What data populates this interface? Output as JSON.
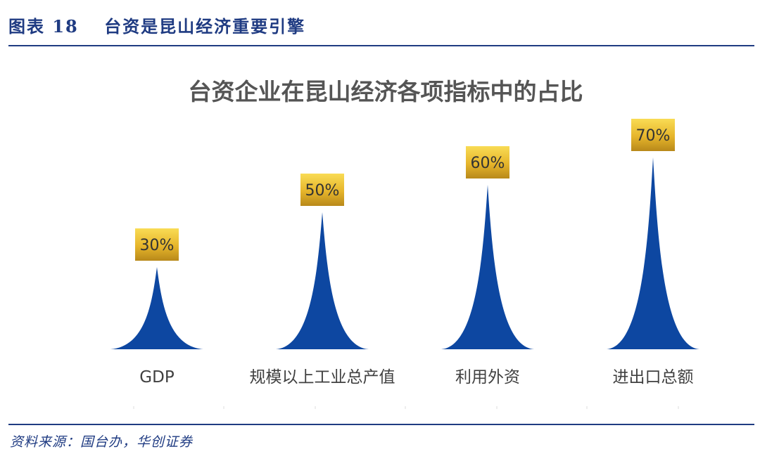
{
  "header": {
    "figure_number": "图表 18",
    "figure_title": "台资是昆山经济重要引擎"
  },
  "source": "资料来源：国台办，华创证券",
  "colors": {
    "brand_blue": "#1f3b82",
    "peak_blue": "#0d47a1",
    "badge_gold_light": "#f7d54a",
    "badge_gold_dark": "#b8891a"
  },
  "chart_data": {
    "type": "bar",
    "title": "台资企业在昆山经济各项指标中的占比",
    "categories": [
      "GDP",
      "规模以上工业总产值",
      "利用外资",
      "进出口总额"
    ],
    "values": [
      30,
      50,
      60,
      70
    ],
    "value_labels": [
      "30%",
      "50%",
      "60%",
      "70%"
    ],
    "ylim": [
      0,
      70
    ],
    "grid": false,
    "legend": "none"
  }
}
